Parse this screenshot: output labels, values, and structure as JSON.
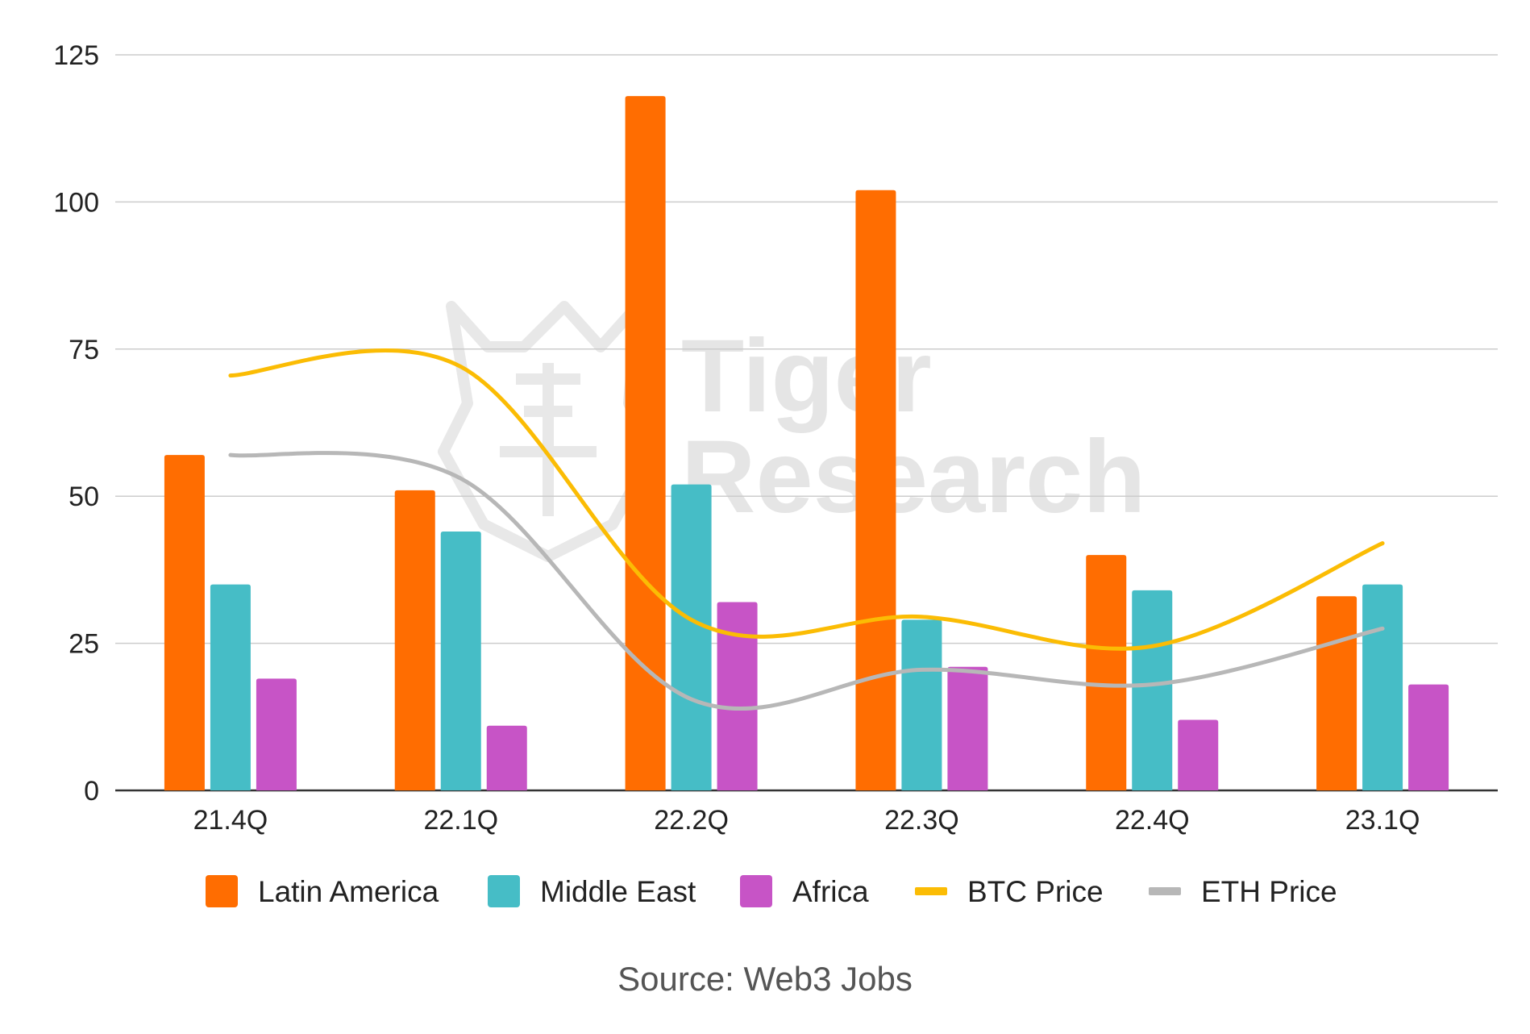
{
  "chart_data": {
    "type": "bar",
    "categories": [
      "21.4Q",
      "22.1Q",
      "22.2Q",
      "22.3Q",
      "22.4Q",
      "23.1Q"
    ],
    "ylim": [
      0,
      125
    ],
    "yticks": [
      0,
      25,
      50,
      75,
      100,
      125
    ],
    "grid": true,
    "legend_position": "bottom",
    "series": [
      {
        "name": "Latin America",
        "kind": "bar",
        "color": "#ff6d01",
        "values": [
          57,
          51,
          118,
          102,
          40,
          33
        ]
      },
      {
        "name": "Middle East",
        "kind": "bar",
        "color": "#46bdc6",
        "values": [
          35,
          44,
          52,
          29,
          34,
          35
        ]
      },
      {
        "name": "Africa",
        "kind": "bar",
        "color": "#c754c6",
        "values": [
          19,
          11,
          32,
          21,
          12,
          18
        ]
      },
      {
        "name": "BTC Price",
        "kind": "line",
        "color": "#fbbc04",
        "values": [
          70.5,
          72,
          29,
          29.5,
          24.5,
          42
        ]
      },
      {
        "name": "ETH Price",
        "kind": "line",
        "color": "#b7b7b7",
        "values": [
          57,
          53,
          15.5,
          20.5,
          18,
          27.5
        ]
      }
    ]
  },
  "watermark": {
    "line1": "Tiger",
    "line2": "Research"
  },
  "source": "Source: Web3 Jobs"
}
